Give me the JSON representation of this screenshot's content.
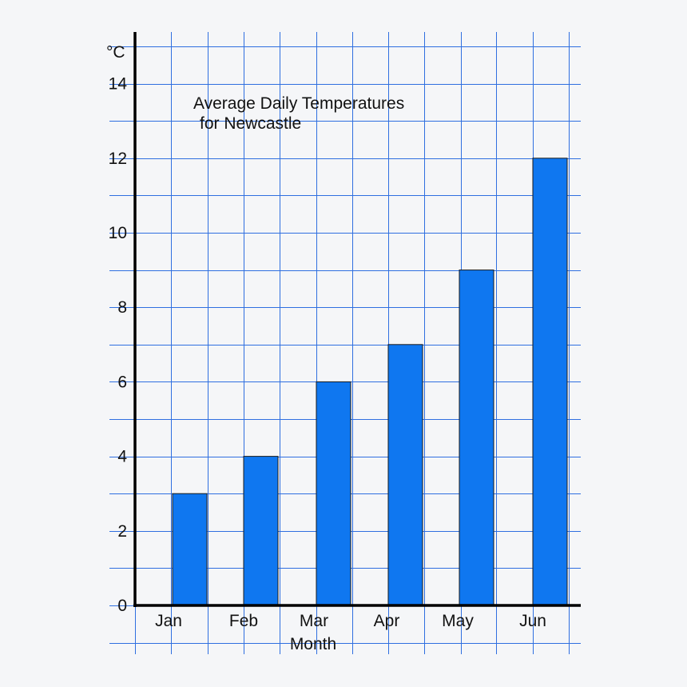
{
  "chart_data": {
    "type": "bar",
    "title": "Average Daily Temperatures",
    "subtitle": "for Newcastle",
    "xlabel": "Month",
    "ylabel": "°C",
    "categories": [
      "Jan",
      "Feb",
      "Mar",
      "Apr",
      "May",
      "Jun"
    ],
    "values": [
      3,
      4,
      6,
      7,
      9,
      12
    ],
    "ylim": [
      0,
      14
    ],
    "yticks": [
      "0",
      "2",
      "4",
      "6",
      "8",
      "10",
      "12",
      "14"
    ],
    "grid": true,
    "legend": "none"
  },
  "colors": {
    "bar": "#0f77f0",
    "grid": "#2f6fe0",
    "axis": "#000000",
    "background": "#f5f6f8"
  }
}
